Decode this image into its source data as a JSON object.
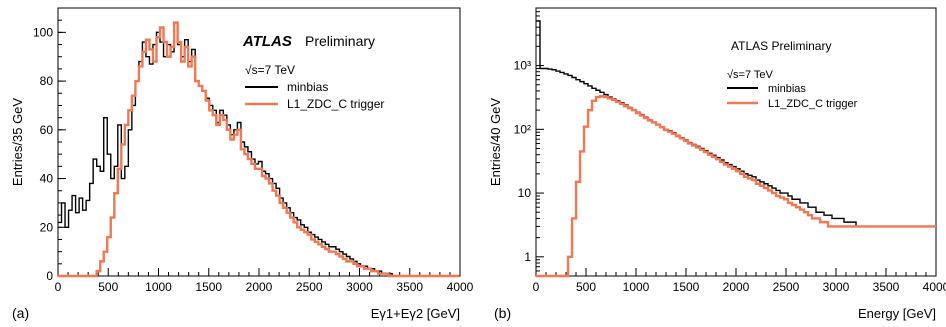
{
  "chart_data": [
    {
      "panel_label": "(a)",
      "type": "line",
      "title": "ATLAS",
      "subtitle": "Preliminary",
      "energy_label": "√s=7 TeV",
      "xlabel": "Eγ1+Eγ2 [GeV]",
      "ylabel": "Entries/35 GeV",
      "xlim": [
        0,
        4000
      ],
      "ylim": [
        0,
        110
      ],
      "log_y": false,
      "x_ticks": [
        0,
        500,
        1000,
        1500,
        2000,
        2500,
        3000,
        3500,
        4000
      ],
      "y_ticks": [
        0,
        20,
        40,
        60,
        80,
        100
      ],
      "legend_position": "top-right",
      "bin_width": 35,
      "bin_start": 0,
      "series": [
        {
          "name": "minbias",
          "color": "#000000",
          "values": [
            22,
            30,
            20,
            27,
            33,
            26,
            32,
            27,
            31,
            38,
            48,
            45,
            43,
            65,
            50,
            40,
            45,
            62,
            40,
            45,
            60,
            70,
            80,
            88,
            96,
            90,
            87,
            95,
            100,
            96,
            90,
            95,
            92,
            104,
            95,
            90,
            97,
            88,
            93,
            80,
            78,
            76,
            73,
            70,
            68,
            63,
            68,
            66,
            62,
            58,
            60,
            63,
            55,
            53,
            51,
            48,
            46,
            47,
            43,
            42,
            40,
            38,
            36,
            32,
            30,
            28,
            26,
            24,
            23,
            21,
            20,
            18,
            17,
            16,
            15,
            14,
            13,
            12,
            12,
            11,
            10,
            9,
            8,
            7,
            6,
            5,
            4,
            4,
            3,
            3,
            2,
            2,
            1,
            1,
            1,
            0,
            0,
            0,
            0,
            0,
            0,
            0,
            0,
            0,
            0,
            0,
            0,
            0,
            0,
            0,
            0,
            0,
            0,
            0,
            0
          ]
        },
        {
          "name": "L1_ZDC_C trigger",
          "color": "#f07855",
          "values": [
            0,
            0,
            0,
            0,
            0,
            0,
            0,
            0,
            0,
            0,
            0,
            2,
            6,
            10,
            16,
            24,
            34,
            44,
            54,
            62,
            68,
            74,
            80,
            86,
            92,
            97,
            93,
            88,
            98,
            102,
            96,
            90,
            94,
            104,
            96,
            88,
            94,
            86,
            90,
            80,
            78,
            76,
            72,
            68,
            66,
            62,
            66,
            64,
            60,
            56,
            58,
            60,
            52,
            50,
            48,
            46,
            44,
            44,
            41,
            40,
            38,
            35,
            33,
            30,
            28,
            26,
            24,
            22,
            20,
            19,
            18,
            17,
            15,
            14,
            13,
            12,
            11,
            10,
            10,
            9,
            8,
            7,
            6,
            6,
            5,
            4,
            4,
            3,
            3,
            2,
            2,
            1,
            1,
            1,
            0,
            0,
            0,
            0,
            0,
            0,
            0,
            0,
            0,
            0,
            0,
            0,
            0,
            0,
            0,
            0,
            0,
            0,
            0,
            0,
            0
          ]
        }
      ]
    },
    {
      "panel_label": "(b)",
      "type": "line",
      "title": "ATLAS Preliminary",
      "energy_label": "√s=7 TeV",
      "xlabel": "Energy [GeV]",
      "ylabel": "Entries/40 GeV",
      "xlim": [
        0,
        4000
      ],
      "ylim": [
        0.5,
        8000
      ],
      "log_y": true,
      "x_ticks": [
        0,
        500,
        1000,
        1500,
        2000,
        2500,
        3000,
        3500,
        4000
      ],
      "y_ticks": [
        1,
        10,
        100,
        1000
      ],
      "y_tick_labels": [
        "1",
        "10",
        "10²",
        "10³"
      ],
      "legend_position": "top-right",
      "bin_width": 40,
      "bin_start": 0,
      "series": [
        {
          "name": "minbias",
          "color": "#000000",
          "values": [
            5000,
            900,
            900,
            880,
            860,
            820,
            780,
            740,
            700,
            650,
            600,
            560,
            520,
            480,
            440,
            410,
            380,
            350,
            320,
            300,
            280,
            260,
            240,
            220,
            200,
            185,
            170,
            155,
            140,
            130,
            120,
            110,
            100,
            95,
            88,
            80,
            74,
            68,
            62,
            58,
            54,
            50,
            46,
            42,
            39,
            36,
            33,
            30,
            28,
            26,
            24,
            22,
            20,
            19,
            18,
            16,
            15,
            14,
            13,
            12,
            11,
            10,
            10,
            9,
            8,
            8,
            7,
            7,
            6,
            6,
            5,
            5,
            4.5,
            4.5,
            4,
            4,
            4,
            3.5,
            3.5,
            3.5,
            3,
            3,
            3,
            3,
            3,
            3,
            3,
            3,
            3,
            3,
            3,
            3,
            3,
            3,
            3,
            3,
            3,
            3,
            3,
            3
          ]
        },
        {
          "name": "L1_ZDC_C trigger",
          "color": "#f07855",
          "values": [
            0,
            0,
            0,
            0,
            0,
            0,
            0,
            0,
            1,
            4,
            15,
            45,
            110,
            200,
            280,
            320,
            330,
            320,
            305,
            290,
            270,
            250,
            230,
            215,
            200,
            180,
            165,
            150,
            138,
            128,
            118,
            108,
            98,
            92,
            85,
            78,
            72,
            66,
            60,
            56,
            52,
            48,
            44,
            40,
            37,
            34,
            31,
            28,
            26,
            24,
            22,
            20,
            18,
            17,
            16,
            14,
            13,
            12,
            11,
            10,
            9,
            8.5,
            8,
            7,
            6.5,
            6,
            5.5,
            5,
            4.5,
            4,
            4,
            3.5,
            3.5,
            3,
            3,
            3,
            3,
            3,
            3,
            3,
            3,
            3,
            3,
            3,
            3,
            3,
            3,
            3,
            3,
            3,
            3,
            3,
            3,
            3,
            3,
            3,
            3,
            3,
            3,
            3
          ]
        }
      ]
    }
  ]
}
